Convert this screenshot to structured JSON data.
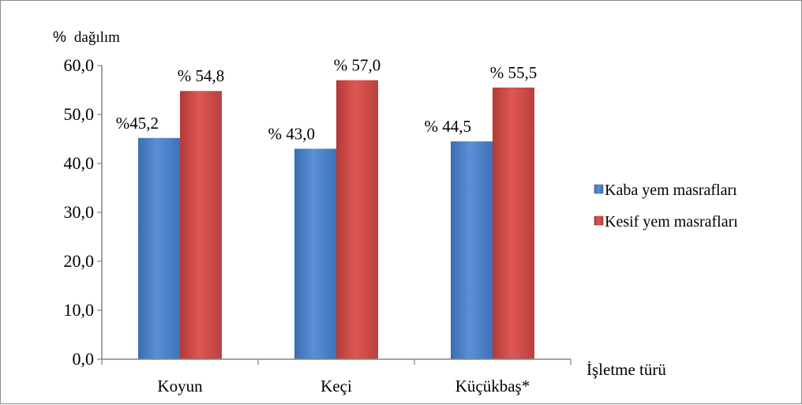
{
  "chart_data": {
    "type": "bar",
    "ylabel_prefix": "%",
    "ylabel_text": "dağılım",
    "xlabel": "İşletme türü",
    "categories": [
      "Koyun",
      "Keçi",
      "Küçükbaş*"
    ],
    "series": [
      {
        "name": "Kaba yem masrafları",
        "values": [
          45.2,
          43.0,
          44.5
        ],
        "labels": [
          "%45,2",
          "% 43,0",
          "% 44,5"
        ],
        "color": "#4a7ebb"
      },
      {
        "name": "Kesif yem masrafları",
        "values": [
          54.8,
          57.0,
          55.5
        ],
        "labels": [
          "% 54,8",
          "% 57,0",
          "% 55,5"
        ],
        "color": "#c0504d"
      }
    ],
    "ylim": [
      0,
      60
    ],
    "ytick_labels": [
      "0,0",
      "10,0",
      "20,0",
      "30,0",
      "40,0",
      "50,0",
      "60,0"
    ],
    "grid": false,
    "legend_position": "right"
  }
}
